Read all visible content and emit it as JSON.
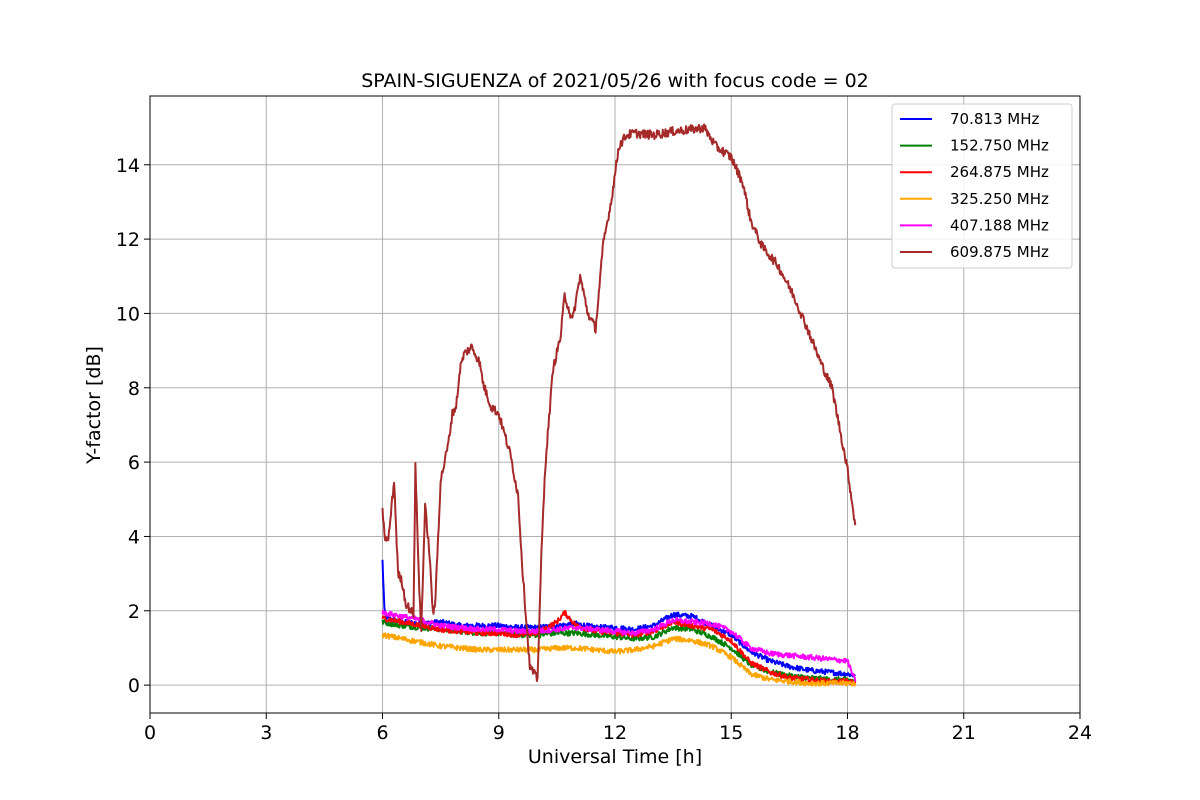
{
  "chart_data": {
    "type": "line",
    "title": "SPAIN-SIGUENZA of 2021/05/26 with focus code = 02",
    "xlabel": "Universal Time [h]",
    "ylabel": "Y-factor [dB]",
    "xlim": [
      0,
      24
    ],
    "ylim": [
      -0.75,
      15.85
    ],
    "xticks": [
      0,
      3,
      6,
      9,
      12,
      15,
      18,
      21,
      24
    ],
    "xtick_labels": [
      "0",
      "3",
      "6",
      "9",
      "12",
      "15",
      "18",
      "21",
      "24"
    ],
    "yticks": [
      0,
      2,
      4,
      6,
      8,
      10,
      12,
      14
    ],
    "ytick_labels": [
      "0",
      "2",
      "4",
      "6",
      "8",
      "10",
      "12",
      "14"
    ],
    "grid": true,
    "legend_position": "top-right",
    "series": [
      {
        "name": " 70.813 MHz",
        "color": "#0000ff",
        "x": [
          6.0,
          6.05,
          6.1,
          6.3,
          6.5,
          7.0,
          7.5,
          8.0,
          8.5,
          9.0,
          9.5,
          10.0,
          10.5,
          11.0,
          11.5,
          12.0,
          12.5,
          13.0,
          13.5,
          14.0,
          14.5,
          15.0,
          15.5,
          16.0,
          16.5,
          17.0,
          17.5,
          18.0,
          18.2
        ],
        "y": [
          3.35,
          2.0,
          1.8,
          1.75,
          1.7,
          1.65,
          1.7,
          1.6,
          1.6,
          1.6,
          1.55,
          1.55,
          1.6,
          1.65,
          1.55,
          1.55,
          1.5,
          1.6,
          1.9,
          1.85,
          1.6,
          1.35,
          0.9,
          0.65,
          0.5,
          0.4,
          0.35,
          0.3,
          0.25
        ]
      },
      {
        "name": "152.750 MHz",
        "color": "#008000",
        "x": [
          6.0,
          6.5,
          7.0,
          7.5,
          8.0,
          8.5,
          9.0,
          9.5,
          10.0,
          10.5,
          11.0,
          11.5,
          12.0,
          12.5,
          13.0,
          13.5,
          14.0,
          14.5,
          15.0,
          15.5,
          16.0,
          16.5,
          17.0,
          17.5,
          18.0,
          18.2
        ],
        "y": [
          1.7,
          1.6,
          1.55,
          1.5,
          1.45,
          1.4,
          1.4,
          1.35,
          1.35,
          1.4,
          1.4,
          1.35,
          1.3,
          1.25,
          1.3,
          1.55,
          1.5,
          1.3,
          1.0,
          0.55,
          0.35,
          0.25,
          0.2,
          0.15,
          0.15,
          0.1
        ]
      },
      {
        "name": "264.875 MHz",
        "color": "#ff0000",
        "x": [
          6.0,
          6.5,
          7.0,
          7.5,
          8.0,
          8.5,
          9.0,
          9.5,
          10.0,
          10.5,
          10.7,
          11.0,
          11.5,
          12.0,
          12.5,
          13.0,
          13.5,
          14.0,
          14.5,
          15.0,
          15.5,
          16.0,
          16.5,
          17.0,
          17.5,
          18.0,
          18.2
        ],
        "y": [
          1.8,
          1.7,
          1.6,
          1.5,
          1.45,
          1.4,
          1.4,
          1.35,
          1.4,
          1.7,
          1.95,
          1.6,
          1.45,
          1.4,
          1.35,
          1.45,
          1.7,
          1.6,
          1.5,
          1.2,
          0.6,
          0.35,
          0.2,
          0.15,
          0.1,
          0.1,
          0.05
        ]
      },
      {
        "name": "325.250 MHz",
        "color": "#ffa500",
        "x": [
          6.0,
          6.5,
          7.0,
          7.5,
          8.0,
          8.5,
          9.0,
          9.5,
          10.0,
          10.5,
          11.0,
          11.5,
          12.0,
          12.5,
          13.0,
          13.5,
          14.0,
          14.5,
          15.0,
          15.5,
          16.0,
          16.5,
          17.0,
          17.5,
          18.0,
          18.2
        ],
        "y": [
          1.35,
          1.25,
          1.15,
          1.05,
          1.0,
          0.95,
          0.95,
          0.95,
          0.95,
          1.0,
          1.0,
          0.95,
          0.9,
          0.95,
          1.05,
          1.25,
          1.2,
          1.05,
          0.75,
          0.3,
          0.15,
          0.1,
          0.05,
          0.05,
          0.05,
          0.05
        ]
      },
      {
        "name": "407.188 MHz",
        "color": "#ff00ff",
        "x": [
          6.0,
          6.5,
          7.0,
          7.5,
          8.0,
          8.5,
          9.0,
          9.5,
          10.0,
          10.5,
          11.0,
          11.5,
          12.0,
          12.5,
          13.0,
          13.5,
          14.0,
          14.5,
          15.0,
          15.5,
          16.0,
          16.5,
          17.0,
          17.5,
          18.0,
          18.2
        ],
        "y": [
          1.95,
          1.85,
          1.75,
          1.6,
          1.55,
          1.5,
          1.5,
          1.45,
          1.45,
          1.5,
          1.55,
          1.5,
          1.45,
          1.4,
          1.5,
          1.75,
          1.7,
          1.65,
          1.45,
          1.0,
          0.85,
          0.8,
          0.75,
          0.7,
          0.65,
          0.1
        ]
      },
      {
        "name": "609.875 MHz",
        "color": "#a52a2a",
        "x": [
          6.0,
          6.05,
          6.15,
          6.3,
          6.4,
          6.5,
          6.6,
          6.8,
          6.85,
          6.95,
          7.0,
          7.1,
          7.2,
          7.3,
          7.35,
          7.5,
          7.7,
          7.8,
          7.9,
          8.0,
          8.1,
          8.3,
          8.5,
          8.6,
          8.8,
          9.0,
          9.3,
          9.5,
          9.6,
          9.8,
          10.0,
          10.1,
          10.2,
          10.4,
          10.6,
          10.7,
          10.9,
          11.1,
          11.3,
          11.5,
          11.7,
          11.9,
          12.1,
          12.3,
          12.5,
          13.0,
          13.5,
          14.0,
          14.3,
          14.6,
          15.0,
          15.3,
          15.5,
          15.8,
          16.2,
          16.6,
          17.0,
          17.3,
          17.6,
          17.8,
          18.0,
          18.2
        ],
        "y": [
          4.8,
          4.0,
          3.9,
          5.5,
          3.0,
          2.8,
          2.2,
          1.9,
          5.9,
          2.5,
          1.5,
          4.8,
          3.7,
          2.0,
          2.0,
          5.5,
          6.5,
          7.3,
          7.5,
          8.5,
          8.9,
          9.1,
          8.7,
          8.1,
          7.5,
          7.3,
          6.2,
          5.1,
          3.3,
          0.5,
          0.15,
          3.5,
          5.9,
          8.5,
          9.4,
          10.5,
          9.8,
          11.0,
          10.0,
          9.6,
          11.9,
          13.0,
          14.5,
          14.8,
          14.85,
          14.8,
          14.9,
          14.95,
          15.0,
          14.5,
          14.2,
          13.5,
          12.5,
          11.8,
          11.3,
          10.5,
          9.5,
          8.7,
          8.0,
          6.9,
          5.8,
          4.3
        ]
      }
    ]
  }
}
